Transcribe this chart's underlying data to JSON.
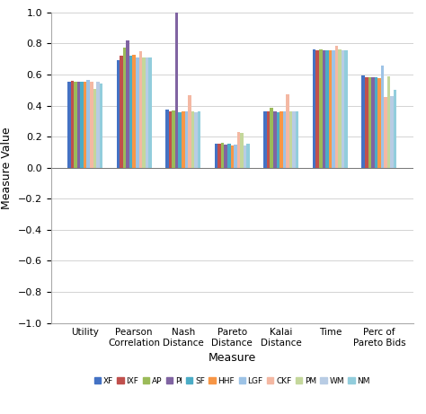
{
  "categories": [
    "Utility",
    "Pearson\nCorrelation",
    "Nash\nDistance",
    "Pareto\nDistance",
    "Kalai\nDistance",
    "Time",
    "Perc of\nPareto Bids"
  ],
  "series": {
    "XF": [
      0.555,
      0.695,
      0.375,
      0.155,
      0.365,
      0.76,
      0.595
    ],
    "IXF": [
      0.56,
      0.72,
      0.365,
      0.155,
      0.36,
      0.755,
      0.585
    ],
    "AP": [
      0.555,
      0.775,
      0.37,
      0.16,
      0.385,
      0.76,
      0.58
    ],
    "PI": [
      0.555,
      0.82,
      1.0,
      0.15,
      0.365,
      0.755,
      0.58
    ],
    "SF": [
      0.555,
      0.72,
      0.355,
      0.155,
      0.355,
      0.755,
      0.58
    ],
    "HHF": [
      0.555,
      0.73,
      0.36,
      0.145,
      0.36,
      0.755,
      0.575
    ],
    "LGF": [
      0.565,
      0.71,
      0.36,
      0.15,
      0.36,
      0.755,
      0.66
    ],
    "CKF": [
      0.555,
      0.75,
      0.465,
      0.23,
      0.47,
      0.785,
      0.455
    ],
    "PM": [
      0.51,
      0.71,
      0.36,
      0.225,
      0.365,
      0.76,
      0.59
    ],
    "WM": [
      0.555,
      0.71,
      0.355,
      0.145,
      0.36,
      0.755,
      0.46
    ],
    "NM": [
      0.54,
      0.71,
      0.365,
      0.155,
      0.36,
      0.755,
      0.5
    ]
  },
  "colors": {
    "XF": "#4472C4",
    "IXF": "#C0504D",
    "AP": "#9BBB59",
    "PI": "#8064A2",
    "SF": "#4BACC6",
    "HHF": "#F79646",
    "LGF": "#9DC3E6",
    "CKF": "#F4B8A3",
    "PM": "#C4D79B",
    "WM": "#B8CCE4",
    "NM": "#92CDDC"
  },
  "ylim": [
    -1,
    1
  ],
  "yticks": [
    -1,
    -0.8,
    -0.6,
    -0.4,
    -0.2,
    0,
    0.2,
    0.4,
    0.6,
    0.8,
    1
  ],
  "xlabel": "Measure",
  "ylabel": "Measure Value",
  "background_color": "#ffffff",
  "legend_order": [
    "XF",
    "IXF",
    "AP",
    "PI",
    "SF",
    "HHF",
    "LGF",
    "CKF",
    "PM",
    "WM",
    "NM"
  ]
}
